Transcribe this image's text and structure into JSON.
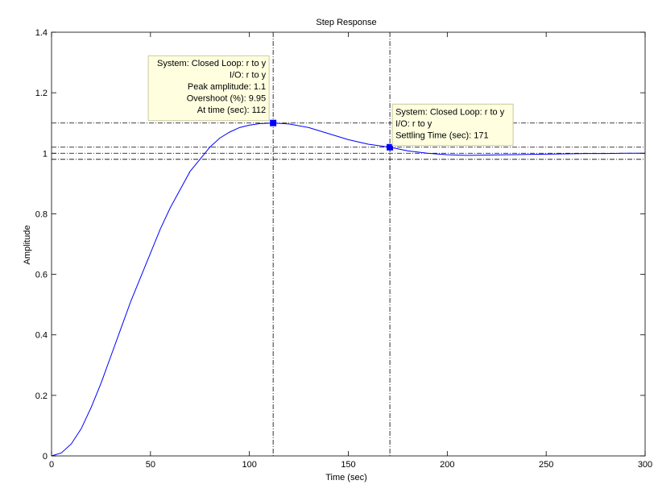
{
  "chart_data": {
    "type": "line",
    "title": "Step Response",
    "xlabel": "Time (sec)",
    "ylabel": "Amplitude",
    "xlim": [
      0,
      300
    ],
    "ylim": [
      0,
      1.4
    ],
    "xticks": [
      0,
      50,
      100,
      150,
      200,
      250,
      300
    ],
    "xtick_labels": [
      "0",
      "50",
      "100",
      "150",
      "200",
      "250",
      "300"
    ],
    "yticks": [
      0,
      0.2,
      0.4,
      0.6,
      0.8,
      1.0,
      1.2,
      1.4
    ],
    "ytick_labels": [
      "0",
      "0.2",
      "0.4",
      "0.6",
      "0.8",
      "1",
      "1.2",
      "1.4"
    ],
    "grid": false,
    "series": [
      {
        "color": "#0000ff",
        "x": [
          0,
          5,
          10,
          15,
          20,
          25,
          30,
          35,
          40,
          45,
          50,
          55,
          60,
          65,
          70,
          75,
          80,
          85,
          90,
          95,
          100,
          105,
          112,
          120,
          130,
          140,
          150,
          160,
          171,
          180,
          190,
          200,
          210,
          220,
          230,
          240,
          250,
          260,
          270,
          280,
          290,
          300
        ],
        "y": [
          0,
          0.01,
          0.04,
          0.09,
          0.16,
          0.24,
          0.33,
          0.42,
          0.51,
          0.59,
          0.67,
          0.75,
          0.82,
          0.88,
          0.94,
          0.98,
          1.02,
          1.05,
          1.07,
          1.085,
          1.093,
          1.098,
          1.1,
          1.097,
          1.085,
          1.065,
          1.045,
          1.03,
          1.02,
          1.008,
          1.0,
          0.995,
          0.993,
          0.994,
          0.995,
          0.996,
          0.997,
          0.998,
          0.999,
          0.999,
          1.0,
          1.0
        ]
      }
    ],
    "reference_lines": {
      "horizontal": [
        1.1,
        1.02,
        1.0,
        0.98
      ],
      "vertical": [
        112,
        171
      ],
      "color": "#000000",
      "style": "dash-dot"
    },
    "markers": [
      {
        "x": 112,
        "y": 1.1,
        "color": "#0000ff"
      },
      {
        "x": 171,
        "y": 1.02,
        "color": "#0000ff"
      }
    ],
    "annotations": [
      {
        "align": "right",
        "lines": [
          "System: Closed Loop: r to y",
          "I/O: r to y",
          "Peak amplitude: 1.1",
          "Overshoot (%): 9.95",
          "At time (sec): 112"
        ]
      },
      {
        "align": "left",
        "lines": [
          "System: Closed Loop: r to y",
          "I/O: r to y",
          "Settling Time (sec): 171"
        ]
      }
    ]
  }
}
